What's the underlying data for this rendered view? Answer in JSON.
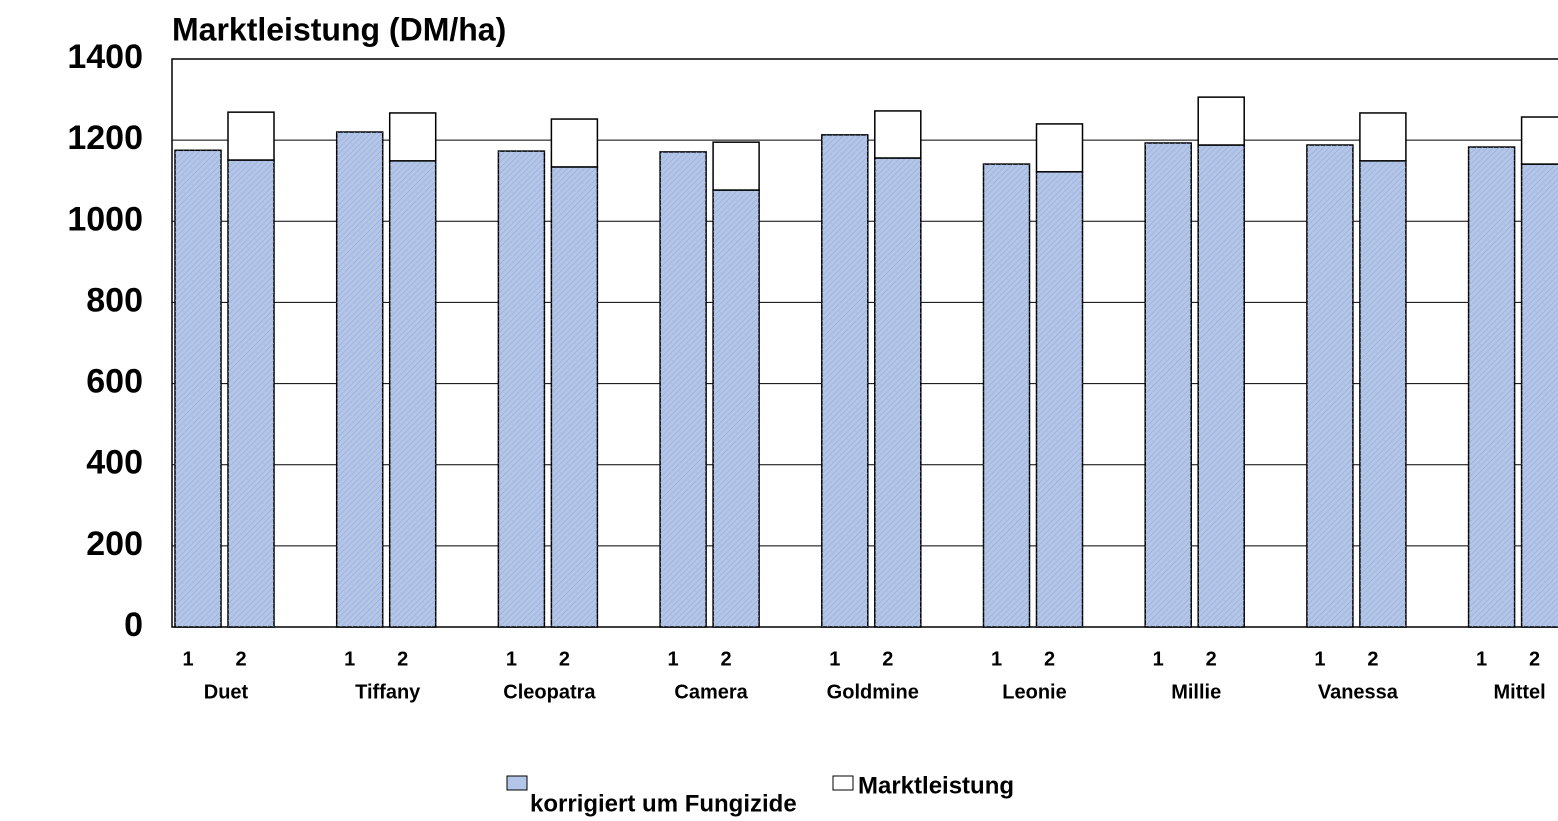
{
  "chart_data": {
    "type": "stacked_bar",
    "title": "Marktleistung (DM/ha)",
    "groups": [
      "Duet",
      "Tiffany",
      "Cleopatra",
      "Camera",
      "Goldmine",
      "Leonie",
      "Millie",
      "Vanessa",
      "Mittel"
    ],
    "categories": [
      "1",
      "2",
      "1",
      "2",
      "1",
      "2",
      "1",
      "2",
      "1",
      "2",
      "1",
      "2",
      "1",
      "2",
      "1",
      "2",
      "1",
      "2"
    ],
    "series": [
      {
        "name": "korrigiert um Fungizide",
        "color": "#b4c6e7",
        "values": [
          1175,
          1151,
          1220,
          1149,
          1173,
          1134,
          1171,
          1077,
          1213,
          1156,
          1141,
          1122,
          1193,
          1188,
          1188,
          1149,
          1183,
          1141
        ]
      },
      {
        "name": "Marktleistung",
        "color": "#ffffff",
        "values": [
          null,
          118,
          null,
          118,
          null,
          118,
          null,
          118,
          null,
          116,
          null,
          118,
          null,
          118,
          null,
          118,
          null,
          116
        ]
      }
    ],
    "ylim": [
      0,
      1400
    ],
    "yticks": [
      0,
      200,
      400,
      600,
      800,
      1000,
      1200,
      1400
    ],
    "grid": true
  }
}
